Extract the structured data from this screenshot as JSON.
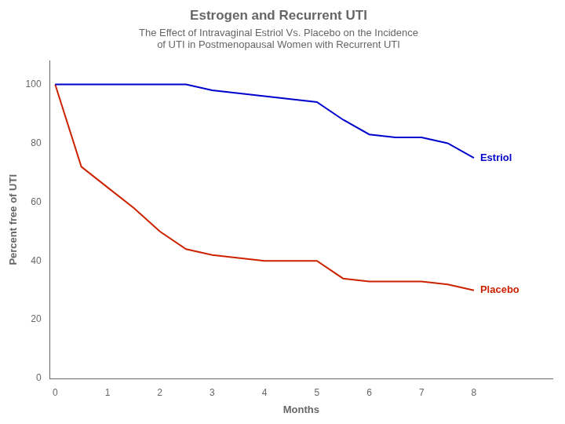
{
  "chart_data": {
    "type": "line",
    "title": "Estrogen and Recurrent UTI",
    "subtitle": [
      "The Effect of Intravaginal Estriol Vs. Placebo on the Incidence",
      "of UTI in Postmenopausal Women with Recurrent UTI"
    ],
    "x_label": "Months",
    "y_label": "Percent free of UTI",
    "x": [
      0,
      0.5,
      1,
      1.5,
      2,
      2.5,
      3,
      3.5,
      4,
      4.5,
      5,
      5.5,
      6,
      6.5,
      7,
      7.5,
      8
    ],
    "series": [
      {
        "name": "Estriol",
        "color": "#0000CC",
        "values": [
          100,
          100,
          100,
          100,
          100,
          100,
          98,
          97,
          96,
          95,
          94,
          88,
          83,
          82,
          82,
          80,
          75
        ]
      },
      {
        "name": "Placebo",
        "color": "#CC2200",
        "values": [
          100,
          72,
          65,
          58,
          50,
          44,
          42,
          41,
          40,
          40,
          40,
          34,
          33,
          33,
          33,
          32,
          30
        ]
      }
    ],
    "xlim": [
      -0.1,
      9.5
    ],
    "xticks": [
      0,
      1,
      2,
      3,
      4,
      5,
      6,
      7,
      8
    ],
    "ylim": [
      0,
      108
    ],
    "yticks": [
      0,
      20,
      40,
      60,
      80,
      100
    ],
    "grid": false
  }
}
